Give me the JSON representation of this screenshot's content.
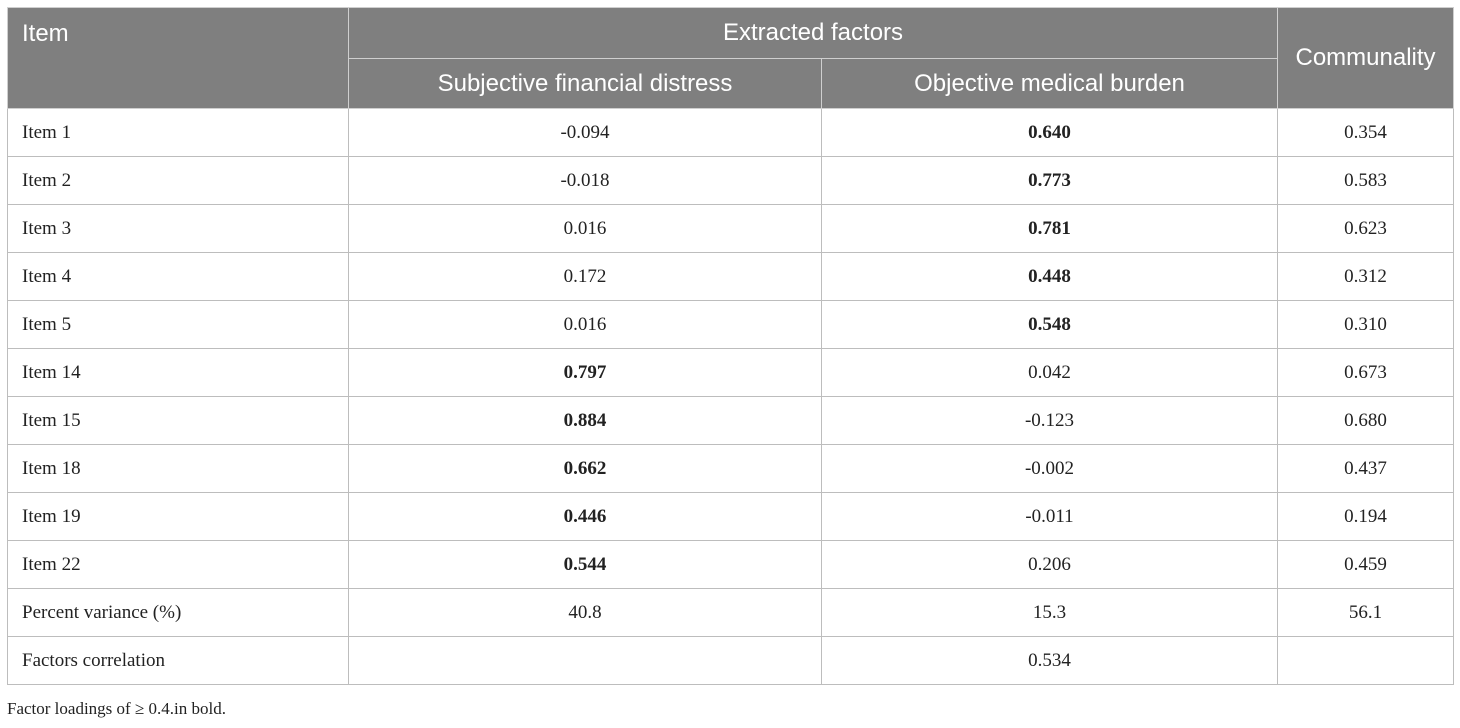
{
  "table": {
    "header": {
      "item": "Item",
      "extracted_factors": "Extracted factors",
      "communality": "Communality",
      "factor1": "Subjective financial distress",
      "factor2": "Objective medical burden"
    },
    "rows": [
      {
        "label": "Item 1",
        "f1": "-0.094",
        "f2": "0.640",
        "communality": "0.354",
        "bold": "f2"
      },
      {
        "label": "Item 2",
        "f1": "-0.018",
        "f2": "0.773",
        "communality": "0.583",
        "bold": "f2"
      },
      {
        "label": "Item 3",
        "f1": "0.016",
        "f2": "0.781",
        "communality": "0.623",
        "bold": "f2"
      },
      {
        "label": "Item 4",
        "f1": "0.172",
        "f2": "0.448",
        "communality": "0.312",
        "bold": "f2"
      },
      {
        "label": "Item 5",
        "f1": "0.016",
        "f2": "0.548",
        "communality": "0.310",
        "bold": "f2"
      },
      {
        "label": "Item 14",
        "f1": "0.797",
        "f2": "0.042",
        "communality": "0.673",
        "bold": "f1"
      },
      {
        "label": "Item 15",
        "f1": "0.884",
        "f2": "-0.123",
        "communality": "0.680",
        "bold": "f1"
      },
      {
        "label": "Item 18",
        "f1": "0.662",
        "f2": "-0.002",
        "communality": "0.437",
        "bold": "f1"
      },
      {
        "label": "Item 19",
        "f1": "0.446",
        "f2": "-0.011",
        "communality": "0.194",
        "bold": "f1"
      },
      {
        "label": "Item 22",
        "f1": "0.544",
        "f2": "0.206",
        "communality": "0.459",
        "bold": "f1"
      }
    ],
    "percent_variance": {
      "label": "Percent variance (%)",
      "f1": "40.8",
      "f2": "15.3",
      "communality": "56.1"
    },
    "factors_correlation": {
      "label": "Factors correlation",
      "f1": "",
      "f2": "0.534",
      "communality": ""
    }
  },
  "footnote": "Factor loadings of ≥ 0.4.in bold."
}
